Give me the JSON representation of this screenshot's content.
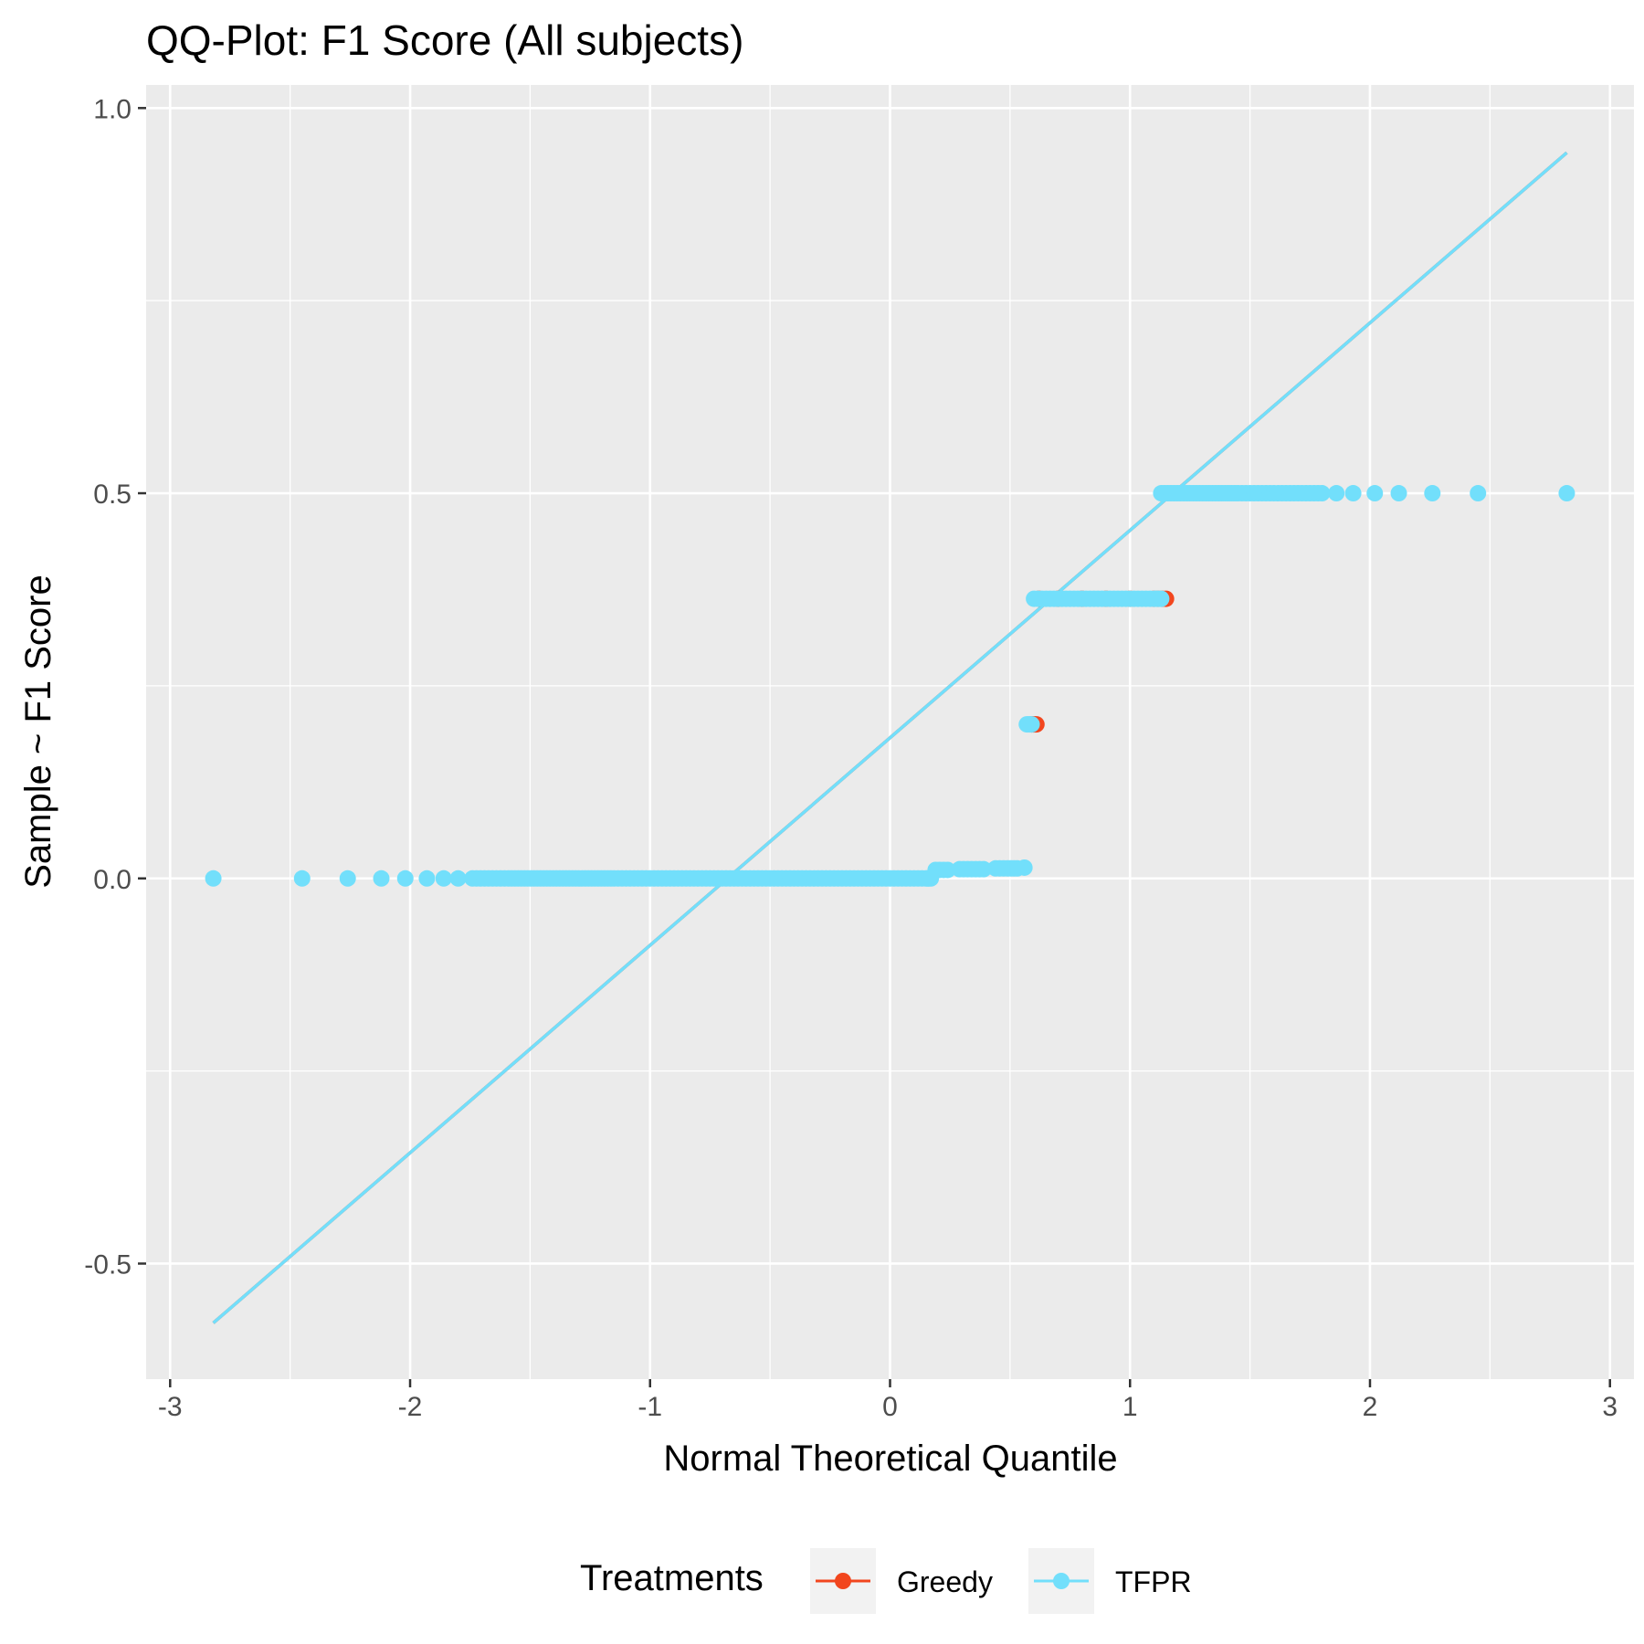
{
  "chart_data": {
    "type": "scatter",
    "title": "QQ-Plot: F1 Score (All subjects)",
    "xlabel": "Normal Theoretical Quantile",
    "ylabel": "Sample ~ F1 Score",
    "xlim": [
      -3.1,
      3.1
    ],
    "ylim": [
      -0.65,
      1.03
    ],
    "x_ticks": [
      -3,
      -2,
      -1,
      0,
      1,
      2,
      3
    ],
    "x_tick_labels": [
      "-3",
      "-2",
      "-1",
      "0",
      "1",
      "2",
      "3"
    ],
    "y_ticks": [
      -0.5,
      0.0,
      0.5,
      1.0
    ],
    "y_tick_labels": [
      "-0.5",
      "0.0",
      "0.5",
      "1.0"
    ],
    "grid": true,
    "legend": {
      "title": "Treatments",
      "position": "bottom",
      "entries": [
        {
          "label": "Greedy",
          "color": "#F2461E"
        },
        {
          "label": "TFPR",
          "color": "#72DFFB"
        }
      ]
    },
    "series": [
      {
        "name": "Greedy",
        "color": "#F2461E",
        "points": [
          [
            0.59,
            0.2
          ],
          [
            0.61,
            0.2
          ],
          [
            0.62,
            0.363
          ],
          [
            0.7,
            0.363
          ],
          [
            0.8,
            0.363
          ],
          [
            0.9,
            0.363
          ],
          [
            1.0,
            0.363
          ],
          [
            1.1,
            0.363
          ],
          [
            1.15,
            0.363
          ]
        ]
      },
      {
        "name": "TFPR",
        "color": "#72DFFB",
        "points": [
          [
            -2.82,
            0.0
          ],
          [
            -2.45,
            0.0
          ],
          [
            -2.26,
            0.0
          ],
          [
            -2.12,
            0.0
          ],
          [
            -2.02,
            0.0
          ],
          [
            -1.93,
            0.0
          ],
          [
            -1.86,
            0.0
          ],
          [
            -1.8,
            0.0
          ],
          [
            -1.74,
            0.0
          ],
          [
            -1.69,
            0.0
          ],
          [
            -1.64,
            0.0
          ],
          [
            -1.59,
            0.0
          ],
          [
            -1.55,
            0.0
          ],
          [
            -1.51,
            0.0
          ],
          [
            -1.47,
            0.0
          ],
          [
            -1.43,
            0.0
          ],
          [
            -1.39,
            0.0
          ],
          [
            -1.35,
            0.0
          ],
          [
            -1.31,
            0.0
          ],
          [
            -1.27,
            0.0
          ],
          [
            -1.23,
            0.0
          ],
          [
            -1.19,
            0.0
          ],
          [
            -1.15,
            0.0
          ],
          [
            -1.1,
            0.0
          ],
          [
            -1.05,
            0.0
          ],
          [
            -1.0,
            0.0
          ],
          [
            -0.95,
            0.0
          ],
          [
            -0.9,
            0.0
          ],
          [
            -0.85,
            0.0
          ],
          [
            -0.8,
            0.0
          ],
          [
            -0.75,
            0.0
          ],
          [
            -0.7,
            0.0
          ],
          [
            -0.65,
            0.0
          ],
          [
            -0.6,
            0.0
          ],
          [
            -0.55,
            0.0
          ],
          [
            -0.5,
            0.0
          ],
          [
            -0.45,
            0.0
          ],
          [
            -0.4,
            0.0
          ],
          [
            -0.35,
            0.0
          ],
          [
            -0.3,
            0.0
          ],
          [
            -0.25,
            0.0
          ],
          [
            -0.2,
            0.0
          ],
          [
            -0.15,
            0.0
          ],
          [
            -0.1,
            0.0
          ],
          [
            -0.05,
            0.0
          ],
          [
            0.0,
            0.0
          ],
          [
            0.05,
            0.0
          ],
          [
            0.1,
            0.0
          ],
          [
            0.15,
            0.0
          ],
          [
            0.17,
            0.0
          ],
          [
            0.19,
            0.011
          ],
          [
            0.24,
            0.011
          ],
          [
            0.29,
            0.012
          ],
          [
            0.34,
            0.012
          ],
          [
            0.39,
            0.012
          ],
          [
            0.44,
            0.013
          ],
          [
            0.49,
            0.013
          ],
          [
            0.53,
            0.013
          ],
          [
            0.56,
            0.014
          ],
          [
            0.57,
            0.2
          ],
          [
            0.59,
            0.2
          ],
          [
            0.6,
            0.363
          ],
          [
            0.65,
            0.363
          ],
          [
            0.7,
            0.363
          ],
          [
            0.75,
            0.363
          ],
          [
            0.8,
            0.363
          ],
          [
            0.85,
            0.363
          ],
          [
            0.9,
            0.363
          ],
          [
            0.95,
            0.363
          ],
          [
            1.0,
            0.363
          ],
          [
            1.05,
            0.363
          ],
          [
            1.1,
            0.363
          ],
          [
            1.13,
            0.363
          ],
          [
            1.13,
            0.5
          ],
          [
            1.17,
            0.5
          ],
          [
            1.21,
            0.5
          ],
          [
            1.25,
            0.5
          ],
          [
            1.29,
            0.5
          ],
          [
            1.33,
            0.5
          ],
          [
            1.37,
            0.5
          ],
          [
            1.41,
            0.5
          ],
          [
            1.45,
            0.5
          ],
          [
            1.5,
            0.5
          ],
          [
            1.55,
            0.5
          ],
          [
            1.6,
            0.5
          ],
          [
            1.65,
            0.5
          ],
          [
            1.7,
            0.5
          ],
          [
            1.75,
            0.5
          ],
          [
            1.8,
            0.5
          ],
          [
            1.86,
            0.5
          ],
          [
            1.93,
            0.5
          ],
          [
            2.02,
            0.5
          ],
          [
            2.12,
            0.5
          ],
          [
            2.26,
            0.5
          ],
          [
            2.45,
            0.5
          ],
          [
            2.82,
            0.5
          ]
        ]
      }
    ],
    "reference_lines": [
      {
        "series": "Greedy",
        "color": "#F2461E",
        "x": [
          -2.82,
          2.82
        ],
        "y": [
          -0.577,
          0.942
        ]
      },
      {
        "series": "TFPR",
        "color": "#72DFFB",
        "x": [
          -2.82,
          2.82
        ],
        "y": [
          -0.577,
          0.942
        ]
      }
    ]
  }
}
